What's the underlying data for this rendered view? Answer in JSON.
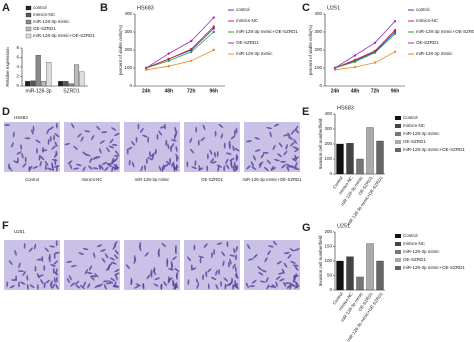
{
  "chart_data": [
    {
      "type": "bar",
      "panel": "A",
      "ylabel": "Relative expression",
      "categories": [
        "miR-128-3p",
        "SZRD1"
      ],
      "ylim": [
        0,
        8
      ],
      "yticks": [
        0,
        2,
        4,
        6,
        8
      ],
      "series": [
        {
          "name": "control",
          "color": "#222222",
          "values": [
            1,
            1
          ]
        },
        {
          "name": "mimics-NC",
          "color": "#555555",
          "values": [
            1.1,
            1
          ]
        },
        {
          "name": "miR-128-3p mimic",
          "color": "#888888",
          "values": [
            6.5,
            0.5
          ]
        },
        {
          "name": "OE-SZRD1",
          "color": "#bbbbbb",
          "values": [
            1,
            4.5
          ]
        },
        {
          "name": "miR-128-3p mimic+OE-SZRD1",
          "color": "#dddddd",
          "values": [
            5,
            3
          ]
        }
      ]
    },
    {
      "type": "line",
      "panel": "B",
      "title": "HS683",
      "ylabel": "percent of viable cells(%)",
      "categories": [
        "24h",
        "48h",
        "72h",
        "96h"
      ],
      "ylim": [
        0,
        400
      ],
      "yticks": [
        0,
        100,
        200,
        300,
        400
      ],
      "series": [
        {
          "name": "control",
          "color": "#1f3fd6",
          "values": [
            100,
            150,
            200,
            320
          ]
        },
        {
          "name": "mimics-NC",
          "color": "#e02020",
          "values": [
            100,
            150,
            205,
            330
          ]
        },
        {
          "name": "miR-128-3p mimic+OE-SZRD1",
          "color": "#20a040",
          "values": [
            100,
            140,
            190,
            300
          ]
        },
        {
          "name": "OE-SZRD1",
          "color": "#9b30c0",
          "values": [
            100,
            180,
            250,
            380
          ]
        },
        {
          "name": "miR-128-3p mimic",
          "color": "#f08a20",
          "values": [
            90,
            110,
            140,
            200
          ]
        }
      ]
    },
    {
      "type": "line",
      "panel": "C",
      "title": "U251",
      "ylabel": "percent of viable cells(%)",
      "categories": [
        "24h",
        "48h",
        "72h",
        "96h"
      ],
      "ylim": [
        0,
        400
      ],
      "yticks": [
        0,
        100,
        200,
        300,
        400
      ],
      "series": [
        {
          "name": "control",
          "color": "#1f3fd6",
          "values": [
            100,
            140,
            190,
            300
          ]
        },
        {
          "name": "mimics-NC",
          "color": "#e02020",
          "values": [
            100,
            145,
            195,
            310
          ]
        },
        {
          "name": "miR-128-3p mimic+OE-SZRD1",
          "color": "#20a040",
          "values": [
            100,
            135,
            185,
            290
          ]
        },
        {
          "name": "OE-SZRD1",
          "color": "#9b30c0",
          "values": [
            100,
            170,
            240,
            360
          ]
        },
        {
          "name": "miR-128-3p mimic",
          "color": "#f08a20",
          "values": [
            90,
            105,
            130,
            190
          ]
        }
      ]
    },
    {
      "type": "bar",
      "panel": "E",
      "title": "HS683",
      "ylabel": "Invasion cell number/field",
      "categories": [
        "Control",
        "mimics-NC",
        "miR-128-3p mimic",
        "OE-SZRD1",
        "miR-128-3p mimic+OE-SZRD1"
      ],
      "values": [
        200,
        205,
        100,
        310,
        220
      ],
      "colors": [
        "#111111",
        "#444444",
        "#777777",
        "#aaaaaa",
        "#666666"
      ],
      "ylim": [
        0,
        400
      ],
      "yticks": [
        0,
        100,
        200,
        300,
        400
      ]
    },
    {
      "type": "bar",
      "panel": "G",
      "title": "U251",
      "ylabel": "Invasion cell number/field",
      "categories": [
        "Control",
        "mimics-NC",
        "miR-128-3p mimic",
        "OE-SZRD1",
        "miR-128-3p mimic+OE-SZRD1"
      ],
      "values": [
        100,
        115,
        45,
        160,
        100
      ],
      "colors": [
        "#111111",
        "#444444",
        "#777777",
        "#aaaaaa",
        "#666666"
      ],
      "ylim": [
        0,
        200
      ],
      "yticks": [
        0,
        50,
        100,
        150,
        200
      ]
    }
  ],
  "figures": [
    {
      "panel": "D",
      "title": "HS683",
      "labels": [
        "Control",
        "mimics-NC",
        "miR-128-3p mimic",
        "OE-SZRD1",
        "miR-128-3p mimic+OE-SZRD1"
      ]
    },
    {
      "panel": "F",
      "title": "U251"
    }
  ]
}
